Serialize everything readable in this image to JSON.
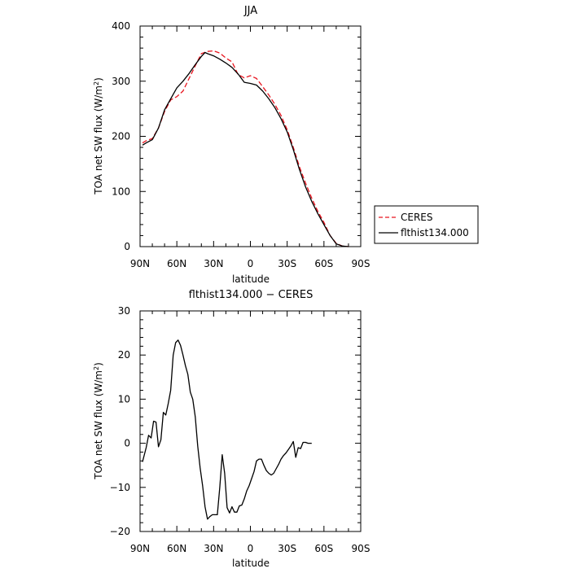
{
  "chart_data": [
    {
      "type": "line",
      "title": "JJA",
      "xlabel": "latitude",
      "ylabel": "TOA net SW flux (W/m",
      "ylabel_sup": "2",
      "ylabel_tail": ")",
      "xlim": [
        90,
        -90
      ],
      "ylim": [
        0,
        400
      ],
      "xticks": [
        90,
        60,
        30,
        0,
        -30,
        -60,
        -90
      ],
      "xtick_labels": [
        "90N",
        "60N",
        "30N",
        "0",
        "30S",
        "60S",
        "90S"
      ],
      "yticks": [
        0,
        100,
        200,
        300,
        400
      ],
      "ytick_labels": [
        "0",
        "100",
        "200",
        "300",
        "400"
      ],
      "legend_position": "right, outside plot",
      "series": [
        {
          "name": "CERES",
          "color": "#e8141e",
          "dash": "dashed",
          "points": [
            [
              88,
              188
            ],
            [
              85,
              192
            ],
            [
              80,
              196
            ],
            [
              75,
              215
            ],
            [
              70,
              245
            ],
            [
              65,
              266
            ],
            [
              60,
              272
            ],
            [
              55,
              282
            ],
            [
              50,
              305
            ],
            [
              45,
              328
            ],
            [
              40,
              350
            ],
            [
              35,
              354
            ],
            [
              30,
              355
            ],
            [
              25,
              351
            ],
            [
              20,
              342
            ],
            [
              15,
              335
            ],
            [
              10,
              312
            ],
            [
              5,
              306
            ],
            [
              0,
              310
            ],
            [
              -5,
              305
            ],
            [
              -10,
              290
            ],
            [
              -15,
              275
            ],
            [
              -20,
              258
            ],
            [
              -25,
              238
            ],
            [
              -30,
              212
            ],
            [
              -35,
              180
            ],
            [
              -40,
              145
            ],
            [
              -45,
              115
            ],
            [
              -50,
              88
            ],
            [
              -55,
              64
            ],
            [
              -60,
              44
            ],
            [
              -65,
              20
            ],
            [
              -70,
              6
            ],
            [
              -75,
              1
            ],
            [
              -80,
              0
            ]
          ]
        },
        {
          "name": "flthist134.000",
          "color": "#000000",
          "dash": "solid",
          "points": [
            [
              88,
              184
            ],
            [
              85,
              188
            ],
            [
              80,
              194
            ],
            [
              75,
              215
            ],
            [
              70,
              248
            ],
            [
              65,
              268
            ],
            [
              60,
              288
            ],
            [
              55,
              300
            ],
            [
              50,
              314
            ],
            [
              45,
              330
            ],
            [
              40,
              345
            ],
            [
              37,
              352
            ],
            [
              35,
              350
            ],
            [
              30,
              346
            ],
            [
              25,
              340
            ],
            [
              20,
              333
            ],
            [
              15,
              325
            ],
            [
              10,
              313
            ],
            [
              5,
              298
            ],
            [
              0,
              296
            ],
            [
              -5,
              293
            ],
            [
              -10,
              282
            ],
            [
              -15,
              268
            ],
            [
              -20,
              252
            ],
            [
              -25,
              232
            ],
            [
              -30,
              208
            ],
            [
              -35,
              176
            ],
            [
              -40,
              140
            ],
            [
              -45,
              108
            ],
            [
              -50,
              82
            ],
            [
              -55,
              60
            ],
            [
              -60,
              40
            ],
            [
              -65,
              20
            ],
            [
              -70,
              5
            ],
            [
              -75,
              1
            ],
            [
              -80,
              0
            ]
          ]
        }
      ]
    },
    {
      "type": "line",
      "title": "flthist134.000 − CERES",
      "xlabel": "latitude",
      "ylabel": "TOA net SW flux (W/m",
      "ylabel_sup": "2",
      "ylabel_tail": ")",
      "xlim": [
        90,
        -90
      ],
      "ylim": [
        -20,
        30
      ],
      "xticks": [
        90,
        60,
        30,
        0,
        -30,
        -60,
        -90
      ],
      "xtick_labels": [
        "90N",
        "60N",
        "30N",
        "0",
        "30S",
        "60S",
        "90S"
      ],
      "yticks": [
        -20,
        -10,
        0,
        10,
        20,
        30
      ],
      "ytick_labels": [
        "−20",
        "−10",
        "0",
        "10",
        "20",
        "30"
      ],
      "series": [
        {
          "name": "",
          "color": "#000000",
          "dash": "solid",
          "points": [
            [
              88,
              -4.2
            ],
            [
              85,
              -1
            ],
            [
              83,
              1.8
            ],
            [
              81,
              1.2
            ],
            [
              79,
              5
            ],
            [
              77,
              4.8
            ],
            [
              75,
              -0.8
            ],
            [
              73,
              0.8
            ],
            [
              71,
              7
            ],
            [
              69,
              6.4
            ],
            [
              67,
              9
            ],
            [
              65,
              12
            ],
            [
              63,
              20
            ],
            [
              61,
              22.8
            ],
            [
              59,
              23.4
            ],
            [
              57,
              22.2
            ],
            [
              55,
              20
            ],
            [
              53,
              17.6
            ],
            [
              51,
              15.6
            ],
            [
              49,
              11.6
            ],
            [
              47,
              10
            ],
            [
              45,
              6
            ],
            [
              43,
              -0.6
            ],
            [
              41,
              -5.6
            ],
            [
              39,
              -9.6
            ],
            [
              37,
              -14.4
            ],
            [
              35,
              -17.2
            ],
            [
              33,
              -16.6
            ],
            [
              31,
              -16.2
            ],
            [
              29,
              -16.2
            ],
            [
              27,
              -16.2
            ],
            [
              25,
              -10
            ],
            [
              23,
              -2.6
            ],
            [
              21,
              -6.8
            ],
            [
              19,
              -14.6
            ],
            [
              17,
              -15.8
            ],
            [
              15,
              -14.4
            ],
            [
              13,
              -15.6
            ],
            [
              11,
              -15.6
            ],
            [
              9,
              -14.2
            ],
            [
              7,
              -14
            ],
            [
              5,
              -12.6
            ],
            [
              3,
              -10.8
            ],
            [
              1,
              -9.6
            ],
            [
              -1,
              -8
            ],
            [
              -3,
              -6.4
            ],
            [
              -5,
              -4
            ],
            [
              -7,
              -3.6
            ],
            [
              -9,
              -3.6
            ],
            [
              -11,
              -5
            ],
            [
              -13,
              -6.2
            ],
            [
              -15,
              -6.8
            ],
            [
              -17,
              -7.2
            ],
            [
              -19,
              -6.8
            ],
            [
              -21,
              -5.8
            ],
            [
              -23,
              -4.8
            ],
            [
              -25,
              -3.6
            ],
            [
              -27,
              -2.8
            ],
            [
              -29,
              -2.2
            ],
            [
              -31,
              -1.4
            ],
            [
              -33,
              -0.6
            ],
            [
              -35,
              0.4
            ],
            [
              -37,
              -3.2
            ],
            [
              -39,
              -1
            ],
            [
              -41,
              -1.2
            ],
            [
              -43,
              0.2
            ],
            [
              -45,
              0.2
            ],
            [
              -47,
              0
            ],
            [
              -50,
              0
            ]
          ]
        }
      ]
    }
  ]
}
